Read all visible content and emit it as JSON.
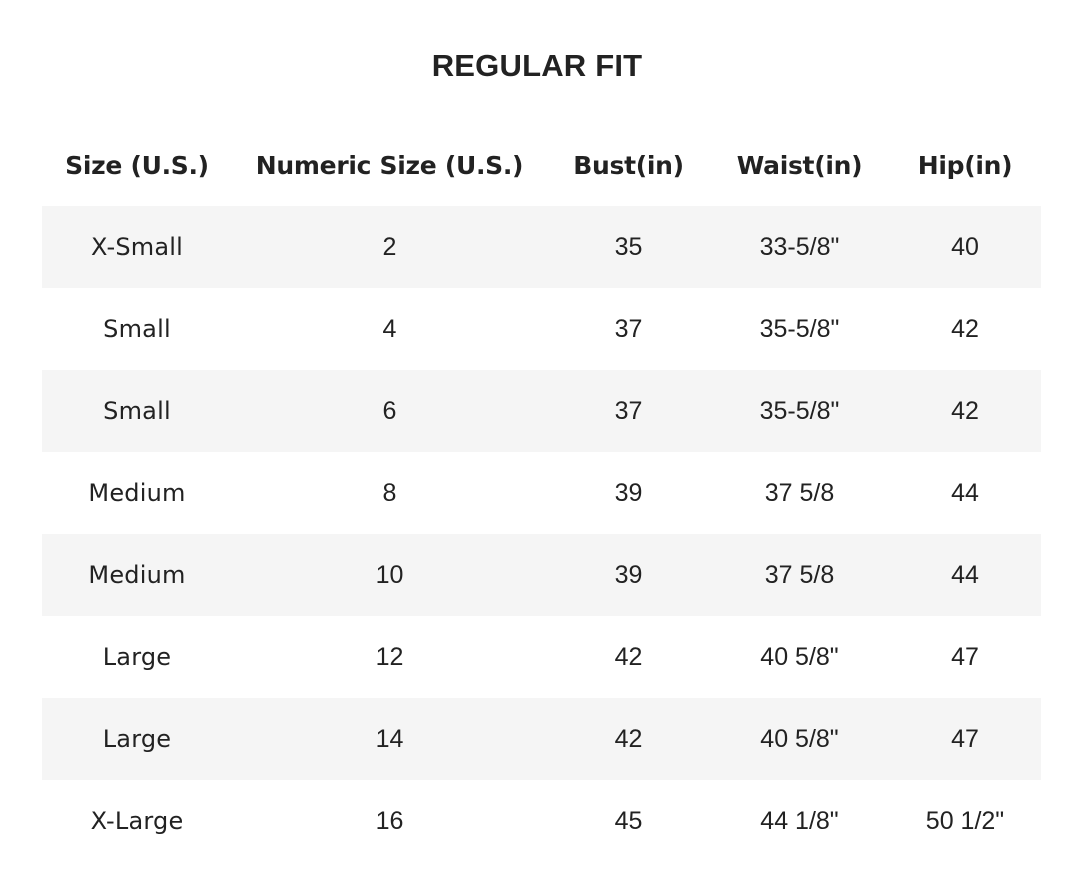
{
  "title": "REGULAR FIT",
  "table": {
    "headers": [
      "Size (U.S.)",
      "Numeric Size (U.S.)",
      "Bust(in)",
      "Waist(in)",
      "Hip(in)"
    ],
    "rows": [
      [
        "X-Small",
        "2",
        "35",
        "33-5/8\"",
        "40"
      ],
      [
        "Small",
        "4",
        "37",
        "35-5/8\"",
        "42"
      ],
      [
        "Small",
        "6",
        "37",
        "35-5/8\"",
        "42"
      ],
      [
        "Medium",
        "8",
        "39",
        "37 5/8",
        "44"
      ],
      [
        "Medium",
        "10",
        "39",
        "37 5/8",
        "44"
      ],
      [
        "Large",
        "12",
        "42",
        "40 5/8\"",
        "47"
      ],
      [
        "Large",
        "14",
        "42",
        "40 5/8\"",
        "47"
      ],
      [
        "X-Large",
        "16",
        "45",
        "44 1/8\"",
        "50 1/2\""
      ]
    ]
  },
  "colors": {
    "text": "#222222",
    "stripe": "#f5f5f5",
    "background": "#ffffff"
  }
}
